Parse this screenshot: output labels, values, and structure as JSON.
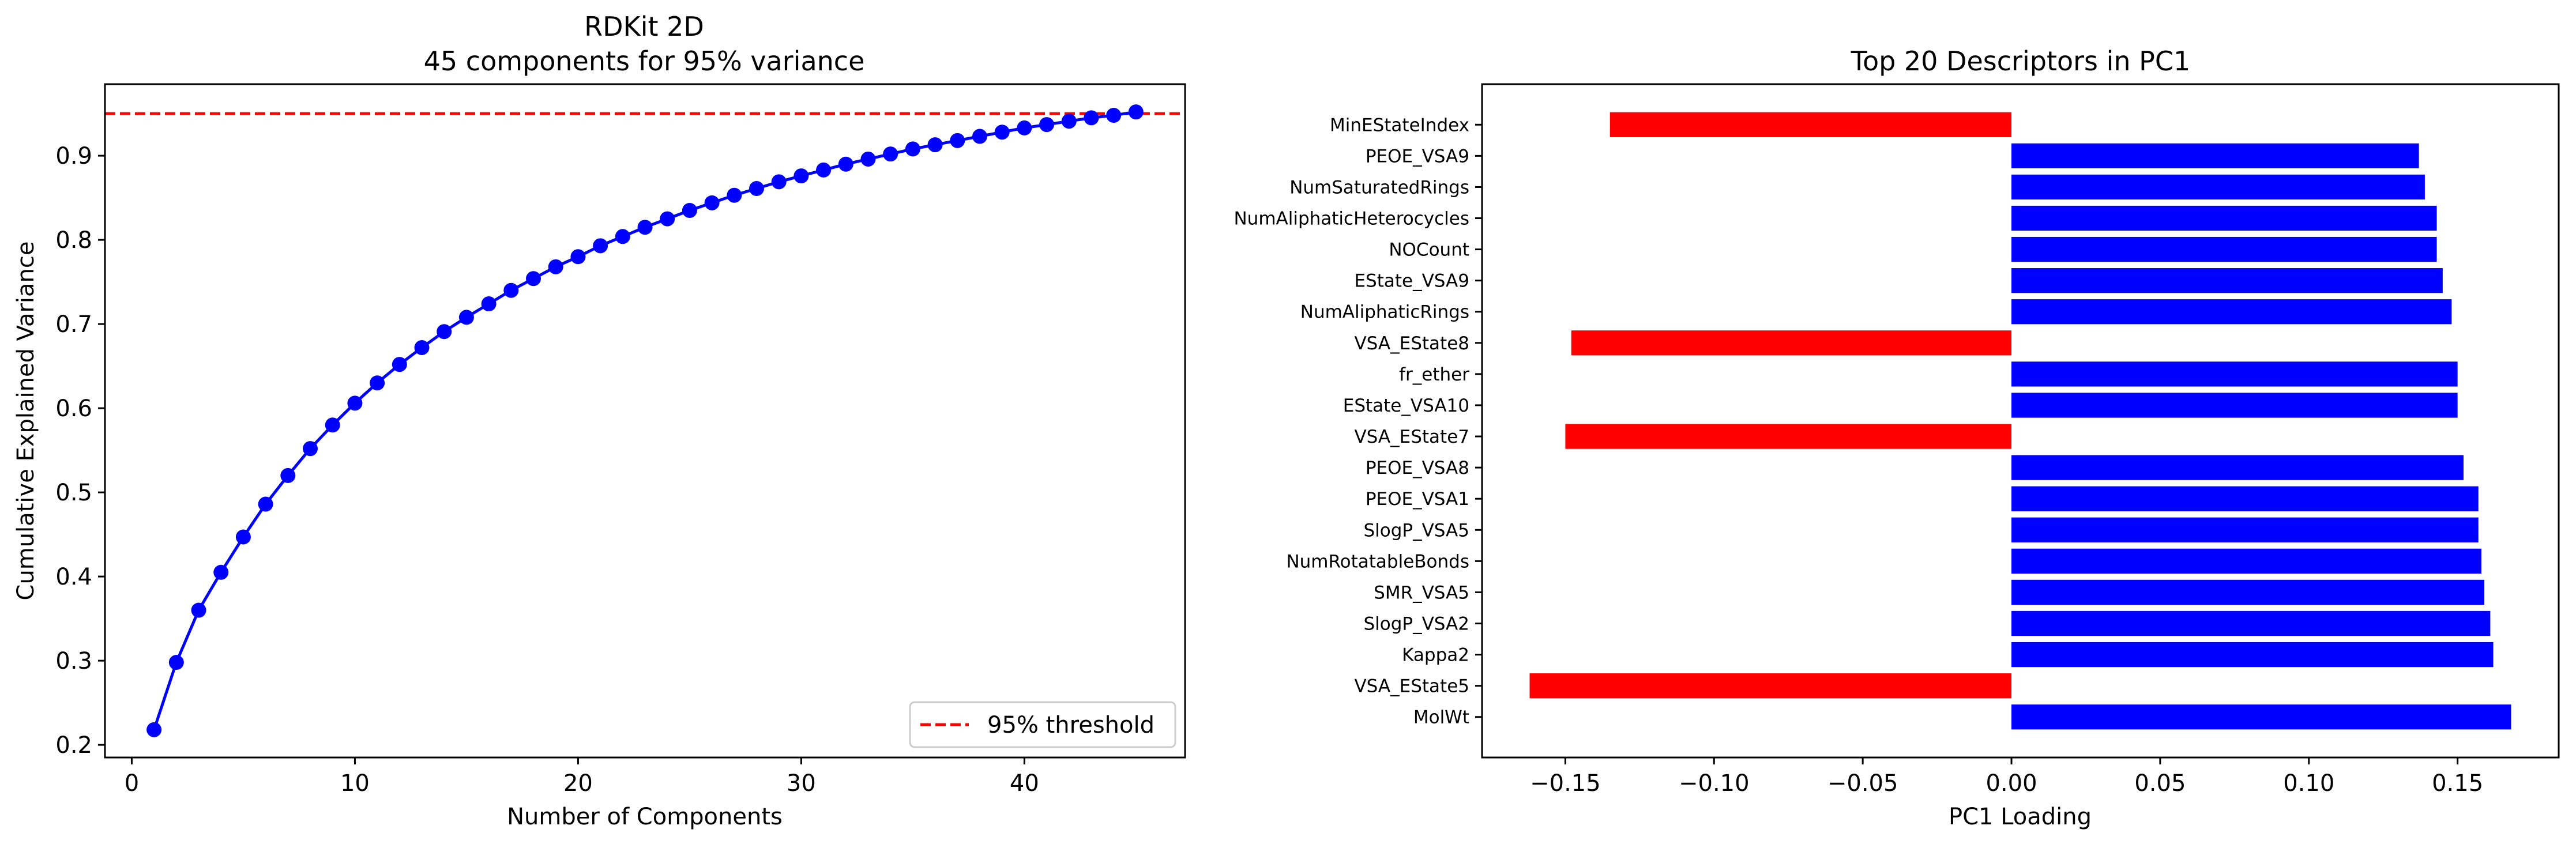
{
  "chart_data": [
    {
      "type": "line",
      "title_line1": "RDKit 2D",
      "title_line2": "45 components for 95% variance",
      "xlabel": "Number of Components",
      "ylabel": "Cumulative Explained Variance",
      "xlim": [
        -1.2,
        47.2
      ],
      "ylim": [
        0.185,
        0.985
      ],
      "xticks": [
        0,
        10,
        20,
        30,
        40
      ],
      "yticks": [
        0.2,
        0.3,
        0.4,
        0.5,
        0.6,
        0.7,
        0.8,
        0.9
      ],
      "grid": false,
      "legend_position": "lower right",
      "series": [
        {
          "color": "#0000ff",
          "x": [
            1,
            2,
            3,
            4,
            5,
            6,
            7,
            8,
            9,
            10,
            11,
            12,
            13,
            14,
            15,
            16,
            17,
            18,
            19,
            20,
            21,
            22,
            23,
            24,
            25,
            26,
            27,
            28,
            29,
            30,
            31,
            32,
            33,
            34,
            35,
            36,
            37,
            38,
            39,
            40,
            41,
            42,
            43,
            44,
            45
          ],
          "y": [
            0.218,
            0.298,
            0.36,
            0.405,
            0.447,
            0.486,
            0.52,
            0.552,
            0.58,
            0.606,
            0.63,
            0.652,
            0.672,
            0.691,
            0.708,
            0.724,
            0.74,
            0.754,
            0.768,
            0.78,
            0.793,
            0.804,
            0.815,
            0.825,
            0.835,
            0.844,
            0.853,
            0.861,
            0.869,
            0.876,
            0.883,
            0.89,
            0.896,
            0.902,
            0.908,
            0.913,
            0.918,
            0.923,
            0.928,
            0.933,
            0.937,
            0.941,
            0.945,
            0.948,
            0.952
          ]
        }
      ],
      "threshold": {
        "y": 0.95,
        "color": "#ff0000",
        "label": "95% threshold"
      }
    },
    {
      "type": "bar",
      "orientation": "horizontal",
      "title": "Top 20 Descriptors in PC1",
      "xlabel": "PC1 Loading",
      "ylabel": "",
      "xlim": [
        -0.178,
        0.184
      ],
      "xticks": [
        -0.15,
        -0.1,
        -0.05,
        0.0,
        0.05,
        0.1,
        0.15
      ],
      "xtick_labels": [
        "−0.15",
        "−0.10",
        "−0.05",
        "0.00",
        "0.05",
        "0.10",
        "0.15"
      ],
      "positive_color": "#0000ff",
      "negative_color": "#ff0000",
      "categories": [
        "MolWt",
        "VSA_EState5",
        "Kappa2",
        "SlogP_VSA2",
        "SMR_VSA5",
        "NumRotatableBonds",
        "SlogP_VSA5",
        "PEOE_VSA1",
        "PEOE_VSA8",
        "VSA_EState7",
        "EState_VSA10",
        "fr_ether",
        "VSA_EState8",
        "NumAliphaticRings",
        "EState_VSA9",
        "NOCount",
        "NumAliphaticHeterocycles",
        "NumSaturatedRings",
        "PEOE_VSA9",
        "MinEStateIndex"
      ],
      "values": [
        0.168,
        -0.162,
        0.162,
        0.161,
        0.159,
        0.158,
        0.157,
        0.157,
        0.152,
        -0.15,
        0.15,
        0.15,
        -0.148,
        0.148,
        0.145,
        0.143,
        0.143,
        0.139,
        0.137,
        -0.135
      ]
    }
  ]
}
